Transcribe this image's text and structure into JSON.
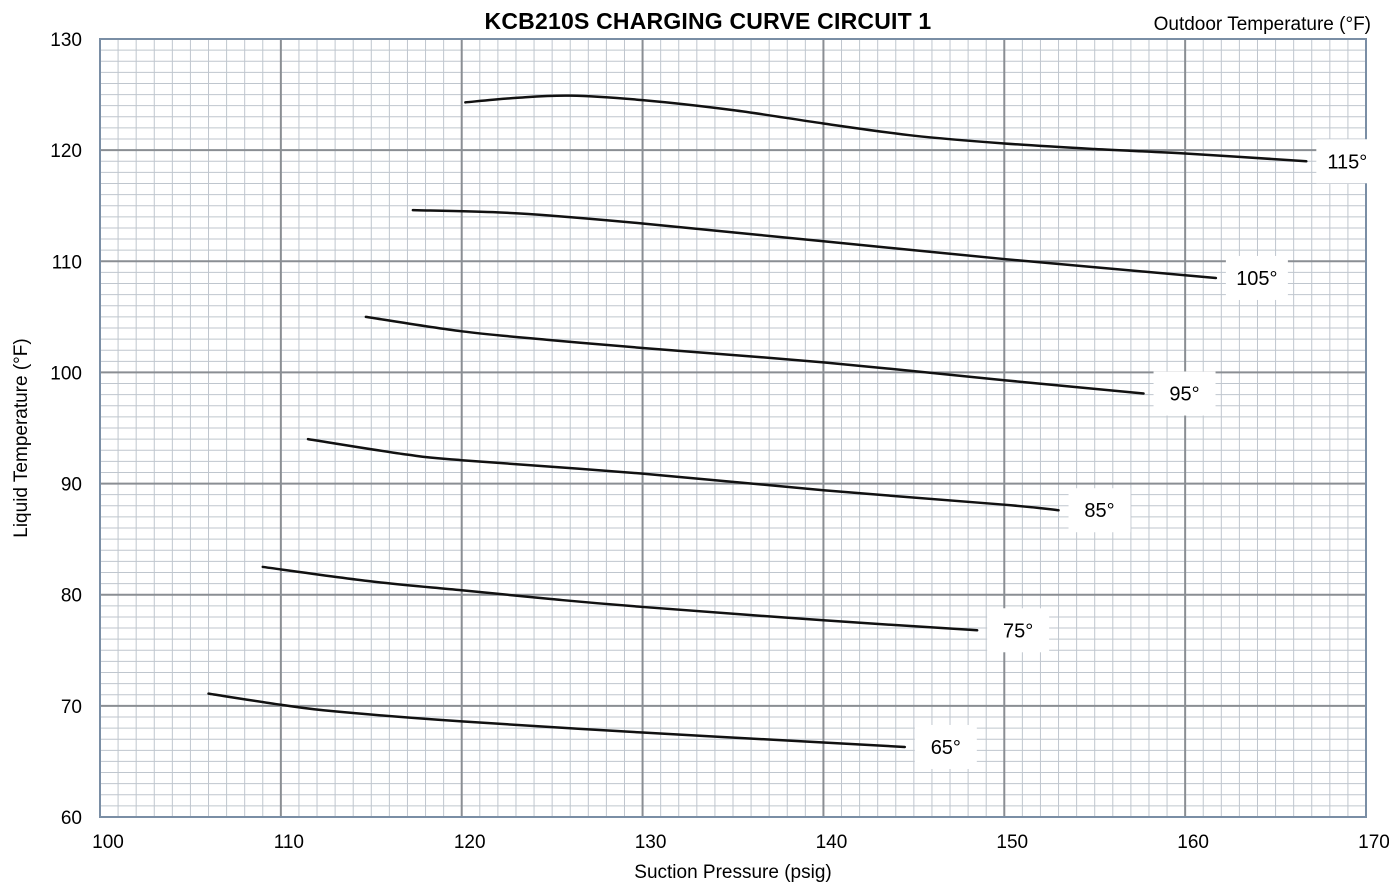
{
  "chart_data": {
    "type": "line",
    "title": "KCB210S CHARGING CURVE CIRCUIT 1",
    "xlabel": "Suction Pressure (psig)",
    "ylabel": "Liquid  Temperature  (°F)",
    "legend_title": "Outdoor Temperature (°F)",
    "xlim": [
      100,
      170
    ],
    "ylim": [
      60,
      130
    ],
    "x_ticks": [
      "100",
      "110",
      "120",
      "130",
      "140",
      "150",
      "160",
      "170"
    ],
    "y_ticks": [
      "60",
      "70",
      "80",
      "90",
      "100",
      "110",
      "120",
      "130"
    ],
    "grid": true,
    "series": [
      {
        "name": "65°",
        "x": [
          106,
          110,
          113,
          120,
          130,
          140,
          144.5
        ],
        "y": [
          71.1,
          70.1,
          69.5,
          68.6,
          67.6,
          66.7,
          66.3
        ]
      },
      {
        "name": "75°",
        "x": [
          109,
          115,
          120,
          125,
          130,
          140,
          148.5
        ],
        "y": [
          82.5,
          81.2,
          80.4,
          79.6,
          78.9,
          77.7,
          76.8
        ]
      },
      {
        "name": "85°",
        "x": [
          111.5,
          117,
          120,
          130,
          140,
          150,
          153
        ],
        "y": [
          94,
          92.6,
          92.1,
          90.9,
          89.4,
          88.1,
          87.6
        ]
      },
      {
        "name": "95°",
        "x": [
          114.7,
          120,
          125,
          130,
          140,
          150,
          157.7
        ],
        "y": [
          105,
          103.7,
          102.9,
          102.2,
          100.9,
          99.3,
          98.1
        ]
      },
      {
        "name": "105°",
        "x": [
          117.3,
          122,
          125,
          130,
          140,
          150,
          161.7
        ],
        "y": [
          114.6,
          114.4,
          114.1,
          113.4,
          111.8,
          110.2,
          108.5
        ]
      },
      {
        "name": "115°",
        "x": [
          120.2,
          123,
          126,
          130,
          135,
          140,
          145,
          150,
          155,
          160,
          166.7
        ],
        "y": [
          124.3,
          124.7,
          124.9,
          124.5,
          123.6,
          122.4,
          121.3,
          120.6,
          120.1,
          119.7,
          119
        ]
      }
    ]
  }
}
